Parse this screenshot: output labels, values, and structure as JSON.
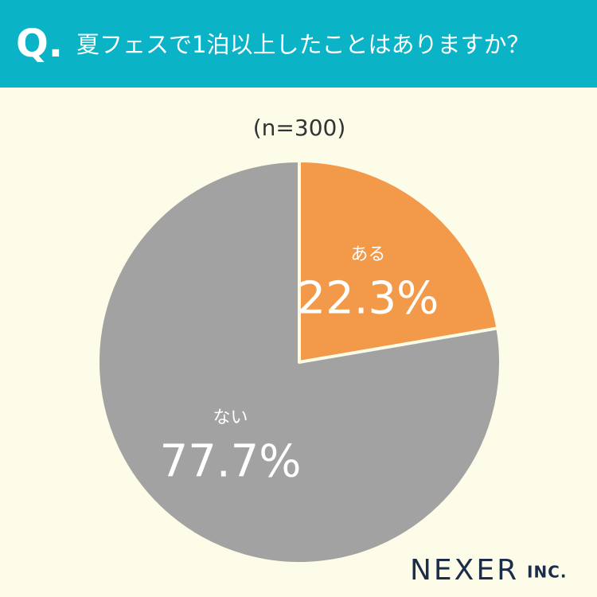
{
  "header": {
    "q_label": "Q.",
    "title": "夏フェスで1泊以上したことはありますか？"
  },
  "chart_data": {
    "type": "pie",
    "subtitle": "(n=300)",
    "categories": [
      "ある",
      "ない"
    ],
    "values": [
      22.3,
      77.7
    ],
    "value_labels": [
      "22.3%",
      "77.7%"
    ],
    "colors": [
      "#f39a4a",
      "#a2a2a2"
    ]
  },
  "logo": {
    "name": "NEXER",
    "suffix": "INC."
  }
}
